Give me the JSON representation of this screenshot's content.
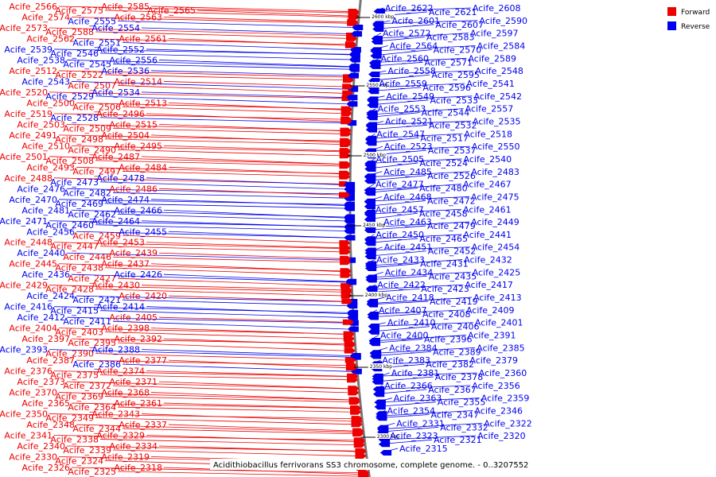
{
  "caption": "Acidithiobacillus ferrivorans SS3 chromosome, complete genome. - 0..3207552",
  "legend": [
    {
      "label": "Forward",
      "color": "#ee0000"
    },
    {
      "label": "Reverse",
      "color": "#0000ee"
    }
  ],
  "ticks": [
    "2600 kbp",
    "2550 kbp",
    "2500 kbp",
    "2450 kbp",
    "2400 kbp",
    "2350 kbp",
    "2300 kbp"
  ],
  "left_labels": [
    {
      "t": "Acife_2566",
      "s": "f"
    },
    {
      "t": "Acife_2575",
      "s": "f"
    },
    {
      "t": "Acife_2585",
      "s": "f"
    },
    {
      "t": "Acife_2565",
      "s": "f"
    },
    {
      "t": "Acife_2574",
      "s": "f"
    },
    {
      "t": "Acife_2555",
      "s": "r"
    },
    {
      "t": "Acife_2563",
      "s": "f"
    },
    {
      "t": "Acife_2573",
      "s": "f"
    },
    {
      "t": "Acife_2588",
      "s": "f"
    },
    {
      "t": "Acife_2554",
      "s": "r"
    },
    {
      "t": "Acife_2562",
      "s": "f"
    },
    {
      "t": "Acife_2551",
      "s": "r"
    },
    {
      "t": "Acife_2561",
      "s": "f"
    },
    {
      "t": "Acife_2539",
      "s": "r"
    },
    {
      "t": "Acife_2546",
      "s": "r"
    },
    {
      "t": "Acife_2552",
      "s": "r"
    },
    {
      "t": "Acife_2538",
      "s": "r"
    },
    {
      "t": "Acife_2545",
      "s": "r"
    },
    {
      "t": "Acife_2556",
      "s": "r"
    },
    {
      "t": "Acife_2512",
      "s": "f"
    },
    {
      "t": "Acife_2522",
      "s": "f"
    },
    {
      "t": "Acife_2536",
      "s": "r"
    },
    {
      "t": "Acife_2543",
      "s": "r"
    },
    {
      "t": "Acife_2507",
      "s": "f"
    },
    {
      "t": "Acife_2514",
      "s": "f"
    },
    {
      "t": "Acife_2520",
      "s": "f"
    },
    {
      "t": "Acife_2529",
      "s": "r"
    },
    {
      "t": "Acife_2534",
      "s": "r"
    },
    {
      "t": "Acife_2500",
      "s": "f"
    },
    {
      "t": "Acife_2506",
      "s": "f"
    },
    {
      "t": "Acife_2513",
      "s": "f"
    },
    {
      "t": "Acife_2519",
      "s": "f"
    },
    {
      "t": "Acife_2528",
      "s": "r"
    },
    {
      "t": "Acife_2496",
      "s": "f"
    },
    {
      "t": "Acife_2503",
      "s": "f"
    },
    {
      "t": "Acife_2509",
      "s": "f"
    },
    {
      "t": "Acife_2515",
      "s": "f"
    },
    {
      "t": "Acife_2491",
      "s": "f"
    },
    {
      "t": "Acife_2498",
      "s": "f"
    },
    {
      "t": "Acife_2504",
      "s": "f"
    },
    {
      "t": "Acife_2510",
      "s": "f"
    },
    {
      "t": "Acife_2490",
      "s": "f"
    },
    {
      "t": "Acife_2495",
      "s": "f"
    },
    {
      "t": "Acife_2501",
      "s": "f"
    },
    {
      "t": "Acife_2508",
      "s": "f"
    },
    {
      "t": "Acife_2487",
      "s": "f"
    },
    {
      "t": "Acife_2493",
      "s": "f"
    },
    {
      "t": "Acife_2497",
      "s": "f"
    },
    {
      "t": "Acife_2484",
      "s": "f"
    },
    {
      "t": "Acife_2488",
      "s": "f"
    },
    {
      "t": "Acife_2473",
      "s": "r"
    },
    {
      "t": "Acife_2478",
      "s": "r"
    },
    {
      "t": "Acife_2476",
      "s": "r"
    },
    {
      "t": "Acife_2482",
      "s": "r"
    },
    {
      "t": "Acife_2486",
      "s": "f"
    },
    {
      "t": "Acife_2470",
      "s": "r"
    },
    {
      "t": "Acife_2469",
      "s": "r"
    },
    {
      "t": "Acife_2474",
      "s": "r"
    },
    {
      "t": "Acife_2481",
      "s": "r"
    },
    {
      "t": "Acife_2462",
      "s": "r"
    },
    {
      "t": "Acife_2466",
      "s": "r"
    },
    {
      "t": "Acife_2471",
      "s": "r"
    },
    {
      "t": "Acife_2460",
      "s": "r"
    },
    {
      "t": "Acife_2464",
      "s": "r"
    },
    {
      "t": "Acife_2456",
      "s": "r"
    },
    {
      "t": "Acife_2459",
      "s": "f"
    },
    {
      "t": "Acife_2455",
      "s": "r"
    },
    {
      "t": "Acife_2448",
      "s": "f"
    },
    {
      "t": "Acife_2447",
      "s": "f"
    },
    {
      "t": "Acife_2453",
      "s": "f"
    },
    {
      "t": "Acife_2440",
      "s": "r"
    },
    {
      "t": "Acife_2446",
      "s": "f"
    },
    {
      "t": "Acife_2439",
      "s": "f"
    },
    {
      "t": "Acife_2445",
      "s": "f"
    },
    {
      "t": "Acife_2438",
      "s": "f"
    },
    {
      "t": "Acife_2437",
      "s": "f"
    },
    {
      "t": "Acife_2436",
      "s": "r"
    },
    {
      "t": "Acife_2427",
      "s": "f"
    },
    {
      "t": "Acife_2426",
      "s": "r"
    },
    {
      "t": "Acife_2429",
      "s": "f"
    },
    {
      "t": "Acife_2428",
      "s": "f"
    },
    {
      "t": "Acife_2430",
      "s": "f"
    },
    {
      "t": "Acife_2424",
      "s": "r"
    },
    {
      "t": "Acife_2421",
      "s": "r"
    },
    {
      "t": "Acife_2420",
      "s": "f"
    },
    {
      "t": "Acife_2416",
      "s": "r"
    },
    {
      "t": "Acife_2415",
      "s": "r"
    },
    {
      "t": "Acife_2414",
      "s": "r"
    },
    {
      "t": "Acife_2412",
      "s": "r"
    },
    {
      "t": "Acife_2411",
      "s": "r"
    },
    {
      "t": "Acife_2405",
      "s": "f"
    },
    {
      "t": "Acife_2404",
      "s": "f"
    },
    {
      "t": "Acife_2403",
      "s": "f"
    },
    {
      "t": "Acife_2398",
      "s": "f"
    },
    {
      "t": "Acife_2397",
      "s": "f"
    },
    {
      "t": "Acife_2395",
      "s": "f"
    },
    {
      "t": "Acife_2392",
      "s": "f"
    },
    {
      "t": "Acife_2393",
      "s": "r"
    },
    {
      "t": "Acife_2390",
      "s": "f"
    },
    {
      "t": "Acife_2388",
      "s": "r"
    },
    {
      "t": "Acife_2387",
      "s": "f"
    },
    {
      "t": "Acife_2386",
      "s": "r"
    },
    {
      "t": "Acife_2377",
      "s": "f"
    },
    {
      "t": "Acife_2376",
      "s": "f"
    },
    {
      "t": "Acife_2375",
      "s": "f"
    },
    {
      "t": "Acife_2374",
      "s": "f"
    },
    {
      "t": "Acife_2373",
      "s": "f"
    },
    {
      "t": "Acife_2372",
      "s": "f"
    },
    {
      "t": "Acife_2371",
      "s": "f"
    },
    {
      "t": "Acife_2370",
      "s": "f"
    },
    {
      "t": "Acife_2369",
      "s": "f"
    },
    {
      "t": "Acife_2368",
      "s": "f"
    },
    {
      "t": "Acife_2365",
      "s": "f"
    },
    {
      "t": "Acife_2364",
      "s": "f"
    },
    {
      "t": "Acife_2361",
      "s": "f"
    },
    {
      "t": "Acife_2350",
      "s": "f"
    },
    {
      "t": "Acife_2349",
      "s": "f"
    },
    {
      "t": "Acife_2343",
      "s": "f"
    },
    {
      "t": "Acife_2348",
      "s": "f"
    },
    {
      "t": "Acife_2344",
      "s": "f"
    },
    {
      "t": "Acife_2337",
      "s": "f"
    },
    {
      "t": "Acife_2341",
      "s": "f"
    },
    {
      "t": "Acife_2338",
      "s": "f"
    },
    {
      "t": "Acife_2329",
      "s": "f"
    },
    {
      "t": "Acife_2340",
      "s": "f"
    },
    {
      "t": "Acife_2339",
      "s": "f"
    },
    {
      "t": "Acife_2334",
      "s": "f"
    },
    {
      "t": "Acife_2330",
      "s": "f"
    },
    {
      "t": "Acife_2324",
      "s": "f"
    },
    {
      "t": "Acife_2319",
      "s": "f"
    },
    {
      "t": "Acife_2326",
      "s": "f"
    },
    {
      "t": "Acife_2325",
      "s": "f"
    },
    {
      "t": "Acife_2318",
      "s": "f"
    }
  ],
  "right_labels": [
    {
      "t": "Acife_2622",
      "s": "r"
    },
    {
      "t": "Acife_2621",
      "s": "r"
    },
    {
      "t": "Acife_2608",
      "s": "r"
    },
    {
      "t": "Acife_2601",
      "s": "r"
    },
    {
      "t": "Acife_2607",
      "s": "r"
    },
    {
      "t": "Acife_2590",
      "s": "r"
    },
    {
      "t": "Acife_2572",
      "s": "r"
    },
    {
      "t": "Acife_2583",
      "s": "r"
    },
    {
      "t": "Acife_2597",
      "s": "r"
    },
    {
      "t": "Acife_2564",
      "s": "r"
    },
    {
      "t": "Acife_2570",
      "s": "r"
    },
    {
      "t": "Acife_2584",
      "s": "r"
    },
    {
      "t": "Acife_2560",
      "s": "r"
    },
    {
      "t": "Acife_2571",
      "s": "r"
    },
    {
      "t": "Acife_2589",
      "s": "r"
    },
    {
      "t": "Acife_2558",
      "s": "r"
    },
    {
      "t": "Acife_2595",
      "s": "r"
    },
    {
      "t": "Acife_2548",
      "s": "r"
    },
    {
      "t": "Acife_2559",
      "s": "r"
    },
    {
      "t": "Acife_2596",
      "s": "r"
    },
    {
      "t": "Acife_2541",
      "s": "r"
    },
    {
      "t": "Acife_2549",
      "s": "r"
    },
    {
      "t": "Acife_2533",
      "s": "r"
    },
    {
      "t": "Acife_2542",
      "s": "r"
    },
    {
      "t": "Acife_2553",
      "s": "r"
    },
    {
      "t": "Acife_2544",
      "s": "r"
    },
    {
      "t": "Acife_2557",
      "s": "r"
    },
    {
      "t": "Acife_2521",
      "s": "r"
    },
    {
      "t": "Acife_2532",
      "s": "r"
    },
    {
      "t": "Acife_2535",
      "s": "r"
    },
    {
      "t": "Acife_2547",
      "s": "r"
    },
    {
      "t": "Acife_2517",
      "s": "r"
    },
    {
      "t": "Acife_2518",
      "s": "r"
    },
    {
      "t": "Acife_2523",
      "s": "r"
    },
    {
      "t": "Acife_2537",
      "s": "r"
    },
    {
      "t": "Acife_2550",
      "s": "r"
    },
    {
      "t": "Acife_2505",
      "s": "r"
    },
    {
      "t": "Acife_2524",
      "s": "r"
    },
    {
      "t": "Acife_2540",
      "s": "r"
    },
    {
      "t": "Acife_2485",
      "s": "r"
    },
    {
      "t": "Acife_2526",
      "s": "r"
    },
    {
      "t": "Acife_2483",
      "s": "r"
    },
    {
      "t": "Acife_2477",
      "s": "r"
    },
    {
      "t": "Acife_2480",
      "s": "r"
    },
    {
      "t": "Acife_2467",
      "s": "r"
    },
    {
      "t": "Acife_2468",
      "s": "r"
    },
    {
      "t": "Acife_2472",
      "s": "r"
    },
    {
      "t": "Acife_2475",
      "s": "r"
    },
    {
      "t": "Acife_2457",
      "s": "r"
    },
    {
      "t": "Acife_2458",
      "s": "r"
    },
    {
      "t": "Acife_2461",
      "s": "r"
    },
    {
      "t": "Acife_2463",
      "s": "r"
    },
    {
      "t": "Acife_2479",
      "s": "r"
    },
    {
      "t": "Acife_2449",
      "s": "r"
    },
    {
      "t": "Acife_2450",
      "s": "r"
    },
    {
      "t": "Acife_2465",
      "s": "r"
    },
    {
      "t": "Acife_2441",
      "s": "r"
    },
    {
      "t": "Acife_2451",
      "s": "r"
    },
    {
      "t": "Acife_2452",
      "s": "r"
    },
    {
      "t": "Acife_2454",
      "s": "r"
    },
    {
      "t": "Acife_2433",
      "s": "r"
    },
    {
      "t": "Acife_2431",
      "s": "r"
    },
    {
      "t": "Acife_2432",
      "s": "r"
    },
    {
      "t": "Acife_2434",
      "s": "r"
    },
    {
      "t": "Acife_2435",
      "s": "r"
    },
    {
      "t": "Acife_2425",
      "s": "r"
    },
    {
      "t": "Acife_2422",
      "s": "r"
    },
    {
      "t": "Acife_2423",
      "s": "r"
    },
    {
      "t": "Acife_2417",
      "s": "r"
    },
    {
      "t": "Acife_2418",
      "s": "r"
    },
    {
      "t": "Acife_2419",
      "s": "r"
    },
    {
      "t": "Acife_2413",
      "s": "r"
    },
    {
      "t": "Acife_2407",
      "s": "r"
    },
    {
      "t": "Acife_2408",
      "s": "r"
    },
    {
      "t": "Acife_2409",
      "s": "r"
    },
    {
      "t": "Acife_2410",
      "s": "r"
    },
    {
      "t": "Acife_2406",
      "s": "r"
    },
    {
      "t": "Acife_2401",
      "s": "r"
    },
    {
      "t": "Acife_2400",
      "s": "r"
    },
    {
      "t": "Acife_2396",
      "s": "r"
    },
    {
      "t": "Acife_2391",
      "s": "r"
    },
    {
      "t": "Acife_2384",
      "s": "r"
    },
    {
      "t": "Acife_2389",
      "s": "r"
    },
    {
      "t": "Acife_2385",
      "s": "r"
    },
    {
      "t": "Acife_2383",
      "s": "r"
    },
    {
      "t": "Acife_2382",
      "s": "r"
    },
    {
      "t": "Acife_2379",
      "s": "r"
    },
    {
      "t": "Acife_2381",
      "s": "r"
    },
    {
      "t": "Acife_2378",
      "s": "r"
    },
    {
      "t": "Acife_2360",
      "s": "r"
    },
    {
      "t": "Acife_2366",
      "s": "r"
    },
    {
      "t": "Acife_2367",
      "s": "r"
    },
    {
      "t": "Acife_2356",
      "s": "r"
    },
    {
      "t": "Acife_2363",
      "s": "r"
    },
    {
      "t": "Acife_2355",
      "s": "r"
    },
    {
      "t": "Acife_2359",
      "s": "r"
    },
    {
      "t": "Acife_2354",
      "s": "r"
    },
    {
      "t": "Acife_2347",
      "s": "r"
    },
    {
      "t": "Acife_2346",
      "s": "r"
    },
    {
      "t": "Acife_2331",
      "s": "r"
    },
    {
      "t": "Acife_2332",
      "s": "r"
    },
    {
      "t": "Acife_2322",
      "s": "r"
    },
    {
      "t": "Acife_2323",
      "s": "r"
    },
    {
      "t": "Acife_2321",
      "s": "r"
    },
    {
      "t": "Acife_2320",
      "s": "r"
    },
    {
      "t": "Acife_2315",
      "s": "r"
    }
  ]
}
